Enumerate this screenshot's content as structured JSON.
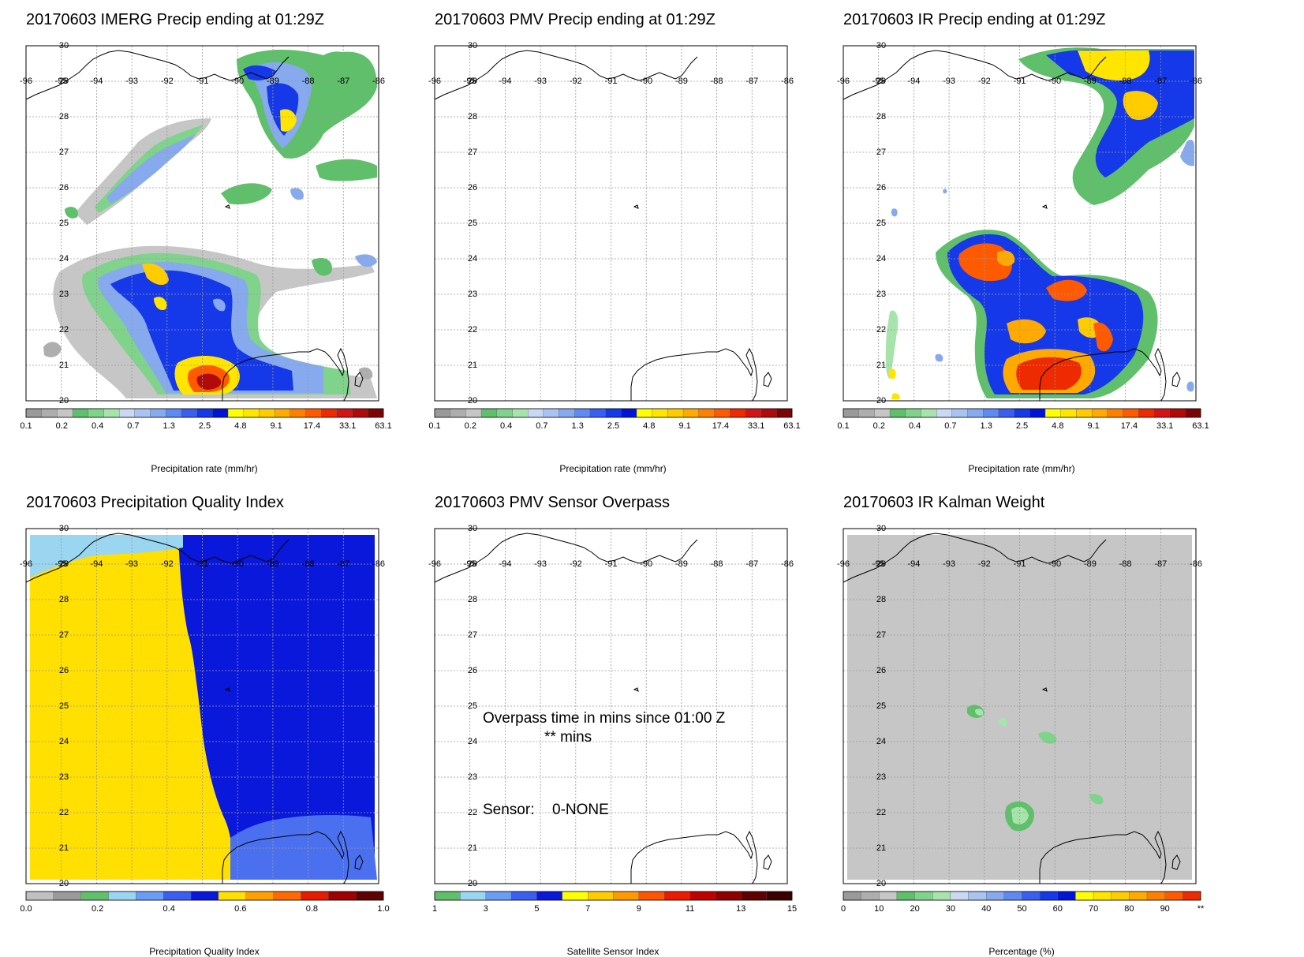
{
  "colors": {
    "precip": [
      "#9a9a9a",
      "#aeaeae",
      "#c6c6c6",
      "#5fbf6b",
      "#7fd38a",
      "#a6e4ac",
      "#c9d9f4",
      "#a9c4f2",
      "#87a9ee",
      "#5e8af2",
      "#3a5ff0",
      "#1538e8",
      "#0014d8",
      "#ffff00",
      "#ffe500",
      "#ffcc00",
      "#ffaa00",
      "#ff8000",
      "#ff5a00",
      "#ee2a00",
      "#d41414",
      "#b00a0a",
      "#7d0404"
    ],
    "quality": [
      "#c0c0c0",
      "#9a9a9a",
      "#5fbf6b",
      "#9ad6f0",
      "#6a9df5",
      "#3a5ff0",
      "#0a18dc",
      "#ffe000",
      "#ffa000",
      "#ff6a00",
      "#e81a00",
      "#a00000",
      "#600000"
    ],
    "sensor": [
      "#5fbf6b",
      "#9ad6f0",
      "#6a9df5",
      "#3a5ff0",
      "#0a18dc",
      "#ffff00",
      "#ffcc00",
      "#ff9900",
      "#ff5500",
      "#ee1a00",
      "#c00000",
      "#900000",
      "#600000",
      "#3a0000"
    ],
    "kalman": [
      "#9a9a9a",
      "#aeaeae",
      "#c6c6c6",
      "#5fbf6b",
      "#7fd38a",
      "#a6e4ac",
      "#c9d9f4",
      "#a9c4f2",
      "#87a9ee",
      "#5e8af2",
      "#3a5ff0",
      "#1538e8",
      "#0014d8",
      "#ffff00",
      "#ffe500",
      "#ffcc00",
      "#ffaa00",
      "#ff8000",
      "#ff5a00",
      "#ee2a00"
    ],
    "coast": "#000000",
    "grid": "#9a9a9a",
    "quality_yellow": "#ffe000",
    "quality_blue": "#0a18dc",
    "quality_light": "#9ad6f0",
    "quality_mid": "#4a70f0",
    "kalman_bg": "#c6c6c6"
  },
  "map": {
    "lon_labels": [
      "-96",
      "-95",
      "-94",
      "-93",
      "-92",
      "-91",
      "-90",
      "-89",
      "-88",
      "-87",
      "-86"
    ],
    "lat_labels": [
      "30",
      "29",
      "28",
      "27",
      "26",
      "25",
      "24",
      "23",
      "22",
      "21",
      "20"
    ]
  },
  "panels": [
    {
      "title": "20170603 IMERG Precip ending at 01:29Z",
      "colorbar": {
        "type": "precip",
        "title": "Precipitation rate (mm/hr)",
        "ticks": [
          "0.1",
          "0.2",
          "0.4",
          "0.7",
          "1.3",
          "2.5",
          "4.8",
          "9.1",
          "17.4",
          "33.1",
          "63.1"
        ]
      },
      "field": "imerg"
    },
    {
      "title": "20170603 PMV Precip ending at 01:29Z",
      "colorbar": {
        "type": "precip",
        "title": "Precipitation rate (mm/hr)",
        "ticks": [
          "0.1",
          "0.2",
          "0.4",
          "0.7",
          "1.3",
          "2.5",
          "4.8",
          "9.1",
          "17.4",
          "33.1",
          "63.1"
        ]
      },
      "field": "none"
    },
    {
      "title": "20170603 IR Precip ending at 01:29Z",
      "colorbar": {
        "type": "precip",
        "title": "Precipitation rate (mm/hr)",
        "ticks": [
          "0.1",
          "0.2",
          "0.4",
          "0.7",
          "1.3",
          "2.5",
          "4.8",
          "9.1",
          "17.4",
          "33.1",
          "63.1"
        ]
      },
      "field": "ir"
    },
    {
      "title": "20170603 Precipitation Quality Index",
      "colorbar": {
        "type": "quality",
        "title": "Precipitation Quality Index",
        "ticks": [
          "0.0",
          "0.2",
          "0.4",
          "0.6",
          "0.8",
          "1.0"
        ]
      },
      "field": "quality"
    },
    {
      "title": "20170603 PMV Sensor Overpass",
      "colorbar": {
        "type": "sensor",
        "title": "Satellite Sensor Index",
        "ticks": [
          "1",
          "3",
          "5",
          "7",
          "9",
          "11",
          "13",
          "15"
        ]
      },
      "field": "none",
      "overlay": {
        "line1": "Overpass time in mins since 01:00 Z",
        "line2": "** mins",
        "sensor_label": "Sensor:",
        "sensor_value": "0-NONE"
      }
    },
    {
      "title": "20170603 IR Kalman Weight",
      "colorbar": {
        "type": "kalman",
        "title": "Percentage (%)",
        "ticks": [
          "0",
          "10",
          "20",
          "30",
          "40",
          "50",
          "60",
          "70",
          "80",
          "90",
          "**"
        ]
      },
      "field": "kalman"
    }
  ]
}
